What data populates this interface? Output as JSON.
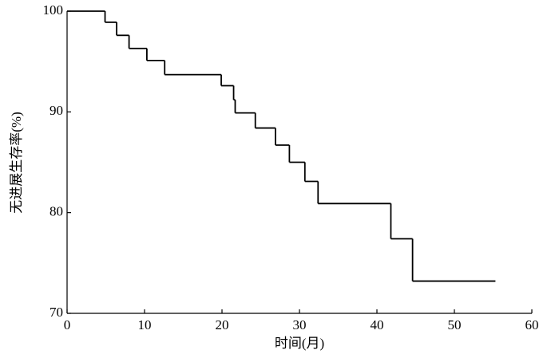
{
  "chart_data": {
    "type": "line",
    "step": "post",
    "x_label": "时间(月)",
    "y_label": "无进展生存率(%)",
    "x": [
      0,
      4.9,
      6.4,
      8.0,
      10.3,
      12.6,
      19.9,
      21.5,
      21.7,
      24.3,
      26.9,
      28.7,
      30.7,
      32.4,
      41.8,
      44.6,
      55.3
    ],
    "values": [
      100,
      98.9,
      97.6,
      96.3,
      95.1,
      93.7,
      92.6,
      91.2,
      89.9,
      88.4,
      86.7,
      85.0,
      83.1,
      80.9,
      77.4,
      73.2,
      73.2
    ],
    "color": "#000000",
    "xlim": [
      0,
      60
    ],
    "xticks": [
      0,
      10,
      20,
      30,
      40,
      50,
      60
    ],
    "ylim": [
      70,
      100
    ],
    "yticks": [
      70,
      80,
      90,
      100
    ]
  }
}
